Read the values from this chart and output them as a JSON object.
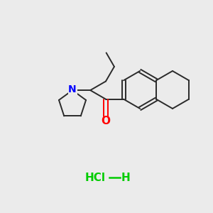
{
  "background_color": "#ebebeb",
  "bond_color": "#2a2a2a",
  "nitrogen_color": "#0000ff",
  "oxygen_color": "#ff0000",
  "hcl_color": "#00cc00",
  "n_text": "N",
  "o_text": "O",
  "figsize": [
    3.0,
    3.0
  ],
  "dpi": 100,
  "bond_lw": 1.4
}
